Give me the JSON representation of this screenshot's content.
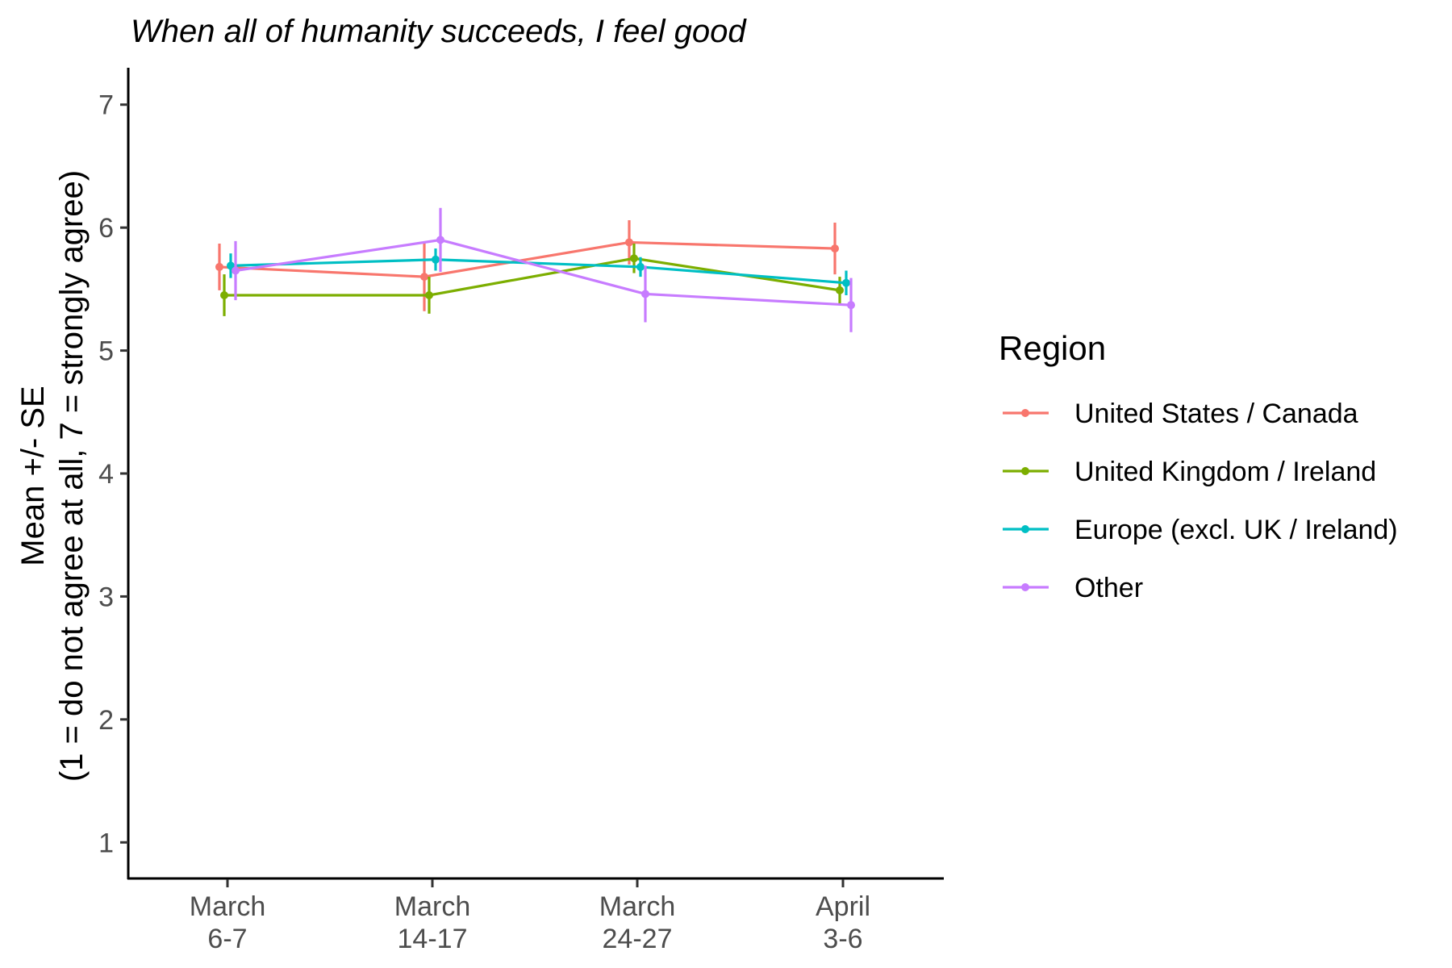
{
  "chart_data": {
    "type": "line",
    "title": "When all of humanity succeeds, I feel good",
    "ylabel_line1": "Mean +/- SE",
    "ylabel_line2": "(1 = do not agree at all, 7 = strongly agree)",
    "xlabel": "",
    "ylim": [
      0.7,
      7.3
    ],
    "yticks": [
      1,
      2,
      3,
      4,
      5,
      6,
      7
    ],
    "categories": [
      [
        "March",
        "6-7"
      ],
      [
        "March",
        "14-17"
      ],
      [
        "March",
        "24-27"
      ],
      [
        "April",
        "3-6"
      ]
    ],
    "legend": {
      "title": "Region",
      "placement": "right"
    },
    "grid": false,
    "series": [
      {
        "name": "United States / Canada",
        "color": "#F8766D",
        "values": [
          5.68,
          5.6,
          5.88,
          5.83
        ],
        "se": [
          0.19,
          0.28,
          0.18,
          0.21
        ]
      },
      {
        "name": "United Kingdom / Ireland",
        "color": "#7CAE00",
        "values": [
          5.45,
          5.45,
          5.75,
          5.49
        ],
        "se": [
          0.17,
          0.15,
          0.12,
          0.11
        ]
      },
      {
        "name": "Europe (excl. UK / Ireland)",
        "color": "#00BFC4",
        "values": [
          5.69,
          5.74,
          5.68,
          5.55
        ],
        "se": [
          0.1,
          0.09,
          0.08,
          0.1
        ]
      },
      {
        "name": "Other",
        "color": "#C77CFF",
        "values": [
          5.65,
          5.9,
          5.46,
          5.37
        ],
        "se": [
          0.24,
          0.26,
          0.23,
          0.22
        ]
      }
    ]
  }
}
